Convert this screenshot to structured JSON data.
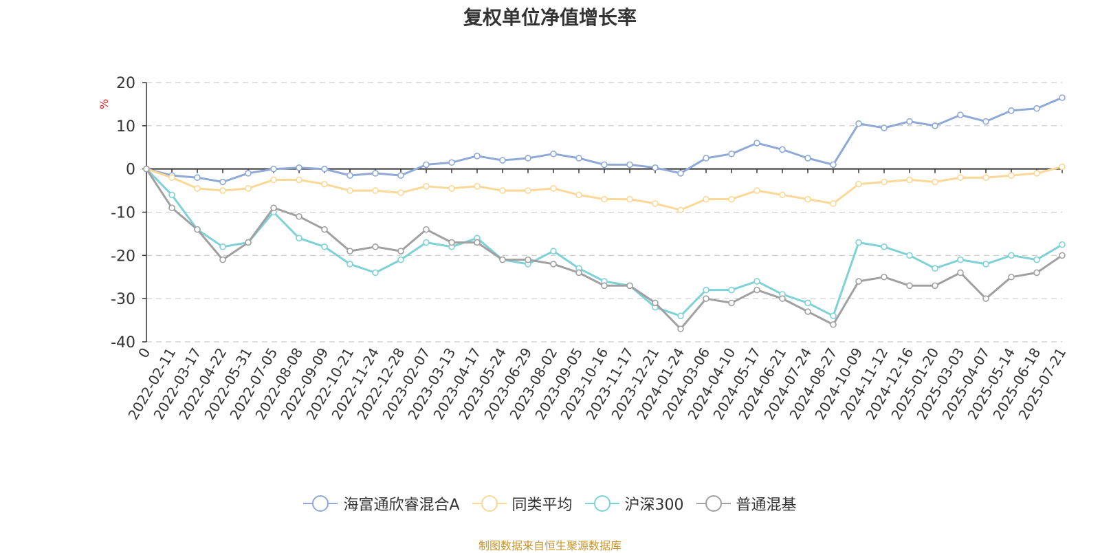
{
  "chart_data": {
    "type": "line",
    "title": "复权单位净值增长率",
    "ylabel": "%",
    "ylim": [
      -40,
      20
    ],
    "yticks": [
      20,
      10,
      0,
      -10,
      -20,
      -30,
      -40
    ],
    "x_categories": [
      "0",
      "2022-02-11",
      "2022-03-17",
      "2022-04-22",
      "2022-05-31",
      "2022-07-05",
      "2022-08-08",
      "2022-09-09",
      "2022-10-21",
      "2022-11-24",
      "2022-12-28",
      "2023-02-07",
      "2023-03-13",
      "2023-04-17",
      "2023-05-24",
      "2023-06-29",
      "2023-08-02",
      "2023-09-05",
      "2023-10-16",
      "2023-11-17",
      "2023-12-21",
      "2024-01-24",
      "2024-03-06",
      "2024-04-10",
      "2024-05-17",
      "2024-06-21",
      "2024-07-24",
      "2024-08-27",
      "2024-10-09",
      "2024-11-12",
      "2024-12-16",
      "2025-01-20",
      "2025-03-03",
      "2025-04-07",
      "2025-05-14",
      "2025-06-18",
      "2025-07-21"
    ],
    "grid": true,
    "legend_position": "bottom",
    "series": [
      {
        "name": "海富通欣睿混合A",
        "color": "#8fa9d6",
        "values": [
          0,
          -1.5,
          -2,
          -3,
          -1,
          0,
          0.3,
          0,
          -1.5,
          -1,
          -1.5,
          1,
          1.5,
          3,
          2,
          2.5,
          3.5,
          2.5,
          1,
          1,
          0.3,
          -1,
          2.5,
          3.5,
          6,
          4.5,
          2.5,
          1,
          10.5,
          9.5,
          11,
          10,
          12.5,
          11,
          13.5,
          14,
          16.5
        ]
      },
      {
        "name": "同类平均",
        "color": "#fbd896",
        "values": [
          0,
          -2,
          -4.5,
          -5,
          -4.5,
          -2.5,
          -2.5,
          -3.5,
          -5,
          -5,
          -5.5,
          -4,
          -4.5,
          -4,
          -5,
          -5,
          -4.5,
          -6,
          -7,
          -7,
          -8,
          -9.5,
          -7,
          -7,
          -5,
          -6,
          -7,
          -8,
          -3.5,
          -3,
          -2.5,
          -3,
          -2,
          -2,
          -1.5,
          -1,
          0.5
        ]
      },
      {
        "name": "沪深300",
        "color": "#7ed2d6",
        "values": [
          0,
          -6,
          -14,
          -18,
          -17,
          -10,
          -16,
          -18,
          -22,
          -24,
          -21,
          -17,
          -18,
          -16,
          -21,
          -22,
          -19,
          -23,
          -26,
          -27,
          -32,
          -34,
          -28,
          -28,
          -26,
          -29,
          -31,
          -34,
          -17,
          -18,
          -20,
          -23,
          -21,
          -22,
          -20,
          -21,
          -17.5
        ]
      },
      {
        "name": "普通混基",
        "color": "#a0a0a0",
        "values": [
          0,
          -9,
          -14,
          -21,
          -17,
          -9,
          -11,
          -14,
          -19,
          -18,
          -19,
          -14,
          -17,
          -17,
          -21,
          -21,
          -22,
          -24,
          -27,
          -27,
          -31,
          -37,
          -30,
          -31,
          -28,
          -30,
          -33,
          -36,
          -26,
          -25,
          -27,
          -27,
          -24,
          -30,
          -25,
          -24,
          -20
        ]
      }
    ]
  },
  "source_text": "制图数据来自恒生聚源数据库"
}
